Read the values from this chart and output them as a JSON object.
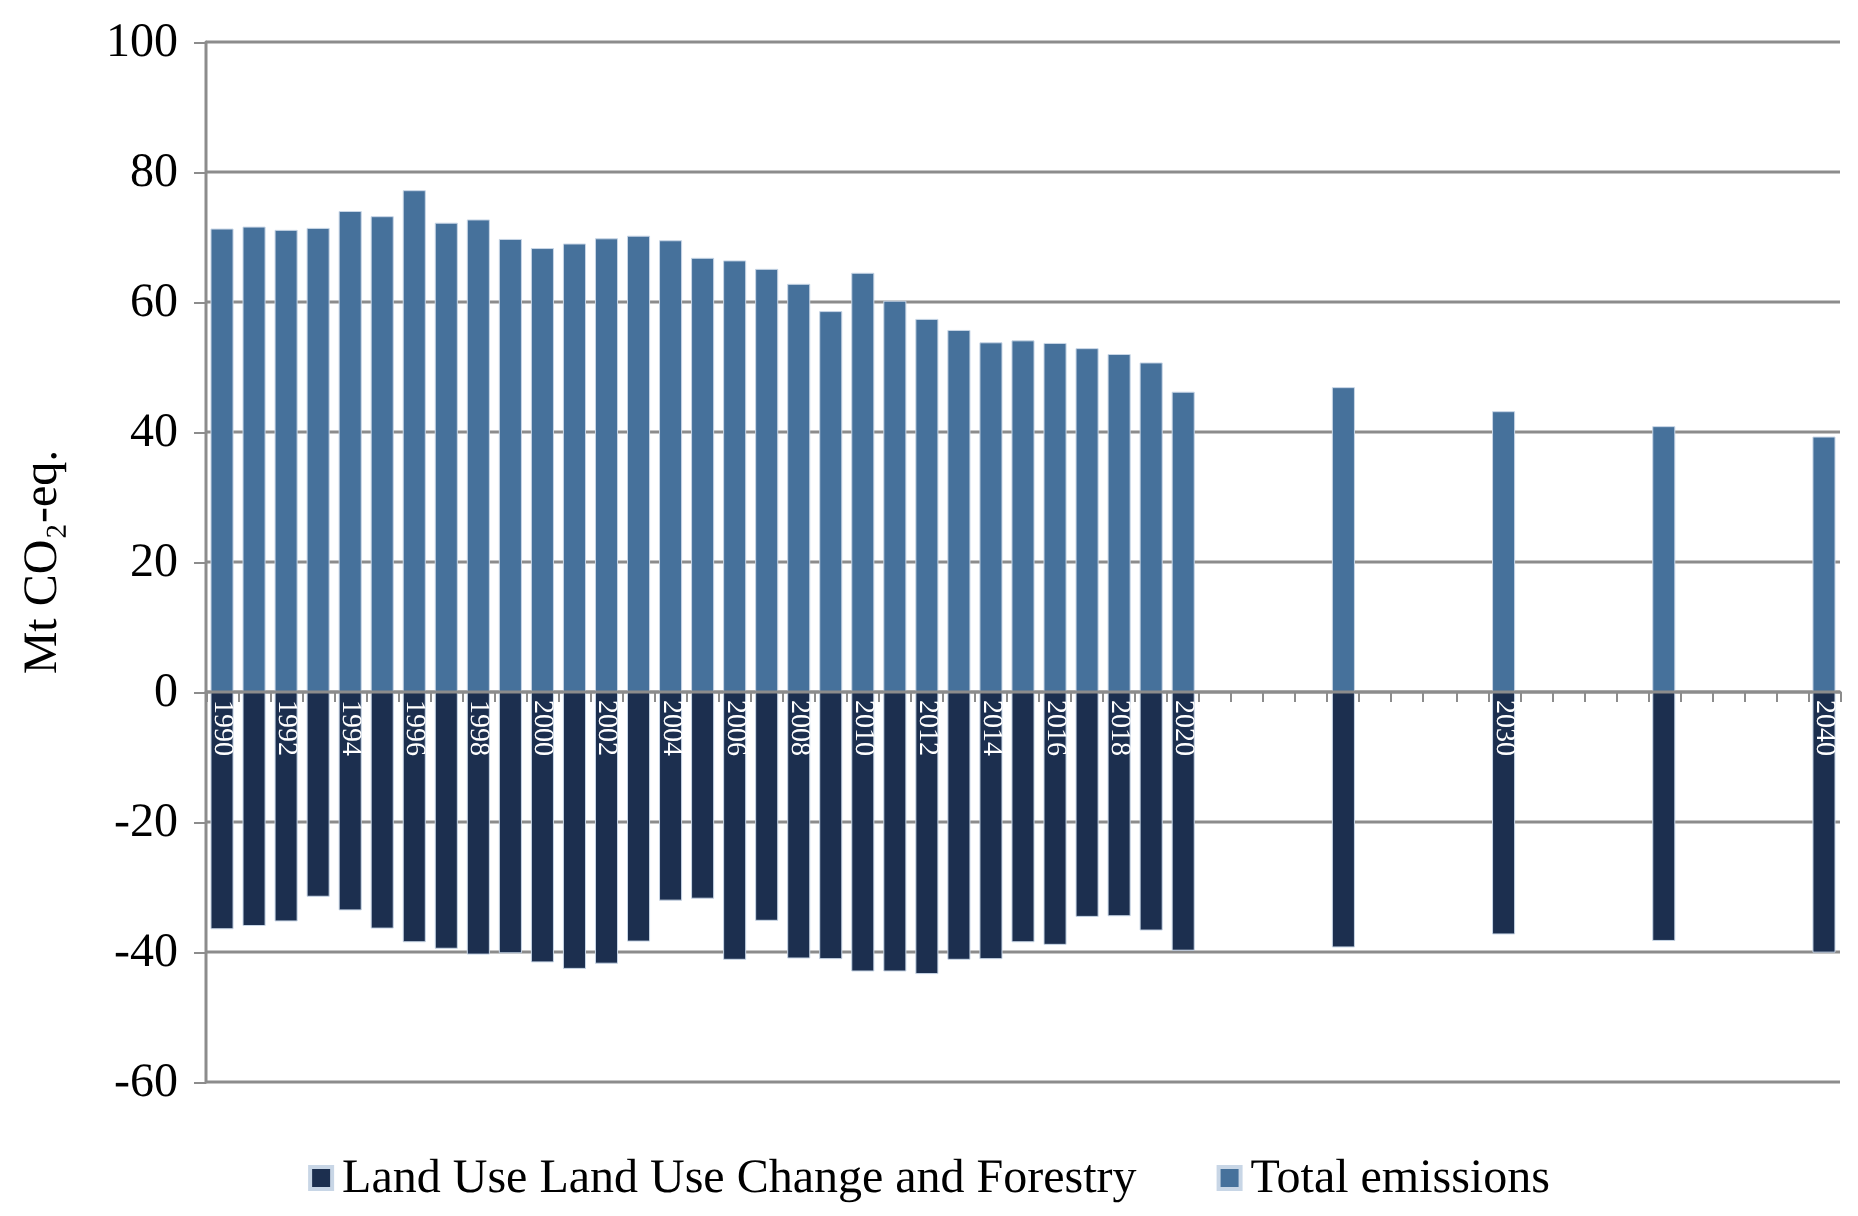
{
  "chart_data": {
    "type": "bar",
    "ylabel": "Mt CO₂-eq.",
    "categories": [
      "1990",
      null,
      "1992",
      null,
      "1994",
      null,
      "1996",
      null,
      "1998",
      null,
      "2000",
      null,
      "2002",
      null,
      "2004",
      null,
      "2006",
      null,
      "2008",
      null,
      "2010",
      null,
      "2012",
      null,
      "2014",
      null,
      "2016",
      null,
      "2018",
      null,
      "2020",
      null,
      null,
      null,
      null,
      null,
      null,
      null,
      null,
      null,
      "2030",
      null,
      null,
      null,
      null,
      null,
      null,
      null,
      null,
      null,
      "2040"
    ],
    "series": [
      {
        "name": "Land Use Land Use Change and Forestry",
        "color": "#1c2f4f",
        "values": [
          -36.5,
          -36.0,
          -35.3,
          -31.5,
          -33.6,
          -36.4,
          -38.5,
          -39.5,
          -40.4,
          -40.2,
          -41.6,
          -42.6,
          -41.8,
          -38.4,
          -32.1,
          -31.8,
          -41.2,
          -35.2,
          -41.0,
          -41.1,
          -43.0,
          -43.0,
          -43.4,
          -41.2,
          -41.1,
          -38.5,
          -38.9,
          -34.6,
          -34.5,
          -36.7,
          -39.8,
          null,
          null,
          null,
          null,
          -39.3,
          null,
          null,
          null,
          null,
          -37.3,
          null,
          null,
          null,
          null,
          -38.3,
          null,
          null,
          null,
          null,
          -40.1
        ]
      },
      {
        "name": "Total emissions",
        "color": "#46719b",
        "values": [
          71.3,
          71.6,
          71.1,
          71.4,
          74.0,
          73.2,
          77.2,
          72.2,
          72.7,
          69.7,
          68.3,
          69.0,
          69.8,
          70.2,
          69.5,
          66.8,
          66.4,
          65.1,
          62.8,
          58.6,
          64.5,
          60.2,
          57.4,
          55.7,
          53.8,
          54.1,
          53.7,
          52.9,
          52.0,
          50.7,
          46.2,
          null,
          null,
          null,
          null,
          46.9,
          null,
          null,
          null,
          null,
          43.2,
          null,
          null,
          null,
          null,
          40.9,
          null,
          null,
          null,
          null,
          39.3
        ]
      }
    ],
    "stacked": true,
    "ylim": [
      -60,
      100
    ],
    "yticks": [
      -60,
      -40,
      -20,
      0,
      20,
      40,
      60,
      80,
      100
    ],
    "grid": "y",
    "legend": "bottom"
  }
}
